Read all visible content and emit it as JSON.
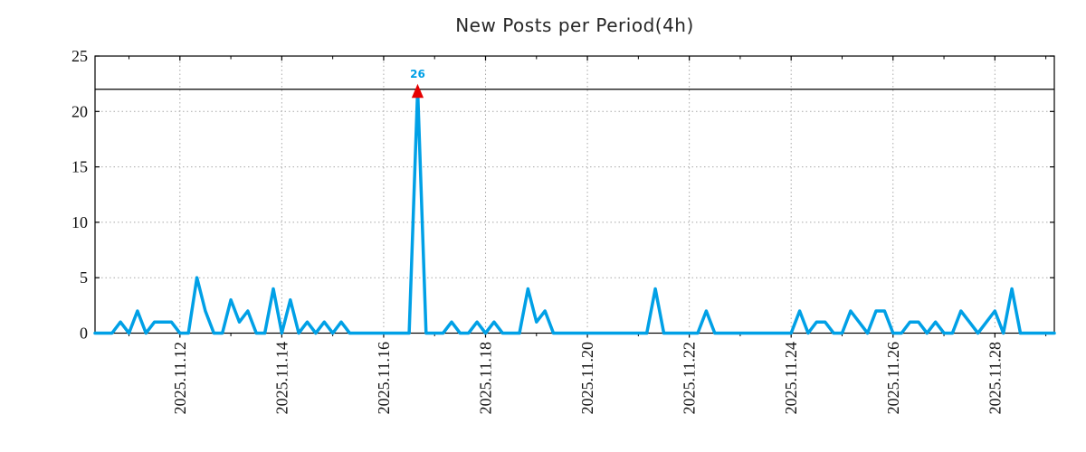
{
  "chart_data": {
    "type": "line",
    "title": "New Posts per Period(4h)",
    "xlabel": "",
    "ylabel": "",
    "ylim": [
      0,
      25
    ],
    "yticks": [
      0,
      5,
      10,
      15,
      20,
      25
    ],
    "grid": "dotted",
    "legend": "none",
    "x_ticks": [
      {
        "index": 10,
        "label": "2025.11.12"
      },
      {
        "index": 22,
        "label": "2025.11.14"
      },
      {
        "index": 34,
        "label": "2025.11.16"
      },
      {
        "index": 46,
        "label": "2025.11.18"
      },
      {
        "index": 58,
        "label": "2025.11.20"
      },
      {
        "index": 70,
        "label": "2025.11.22"
      },
      {
        "index": 82,
        "label": "2025.11.24"
      },
      {
        "index": 94,
        "label": "2025.11.26"
      },
      {
        "index": 106,
        "label": "2025.11.28"
      }
    ],
    "x_minor_tick_indices": [
      4,
      16,
      28,
      40,
      52,
      64,
      76,
      88,
      100,
      112
    ],
    "values": [
      0,
      0,
      0,
      1,
      0,
      2,
      0,
      1,
      1,
      1,
      0,
      0,
      5,
      2,
      0,
      0,
      3,
      1,
      2,
      0,
      0,
      4,
      0,
      3,
      0,
      1,
      0,
      1,
      0,
      1,
      0,
      0,
      0,
      0,
      0,
      0,
      0,
      0,
      26,
      0,
      0,
      0,
      1,
      0,
      0,
      1,
      0,
      1,
      0,
      0,
      0,
      4,
      1,
      2,
      0,
      0,
      0,
      0,
      0,
      0,
      0,
      0,
      0,
      0,
      0,
      0,
      4,
      0,
      0,
      0,
      0,
      0,
      2,
      0,
      0,
      0,
      0,
      0,
      0,
      0,
      0,
      0,
      0,
      2,
      0,
      1,
      1,
      0,
      0,
      2,
      1,
      0,
      2,
      2,
      0,
      0,
      1,
      1,
      0,
      1,
      0,
      0,
      2,
      1,
      0,
      1,
      2,
      0,
      4,
      0,
      0,
      0,
      0,
      0
    ],
    "clip_level": 22,
    "peak_annotation": {
      "index": 38,
      "value": 26,
      "label": "26"
    },
    "colors": {
      "line": "#00a0e6",
      "annotation": "#00a0e6",
      "peak_marker": "#e60000",
      "grid": "#a8a8a8",
      "axis": "#000000",
      "tick_text": "#111111",
      "title": "#262626"
    }
  }
}
